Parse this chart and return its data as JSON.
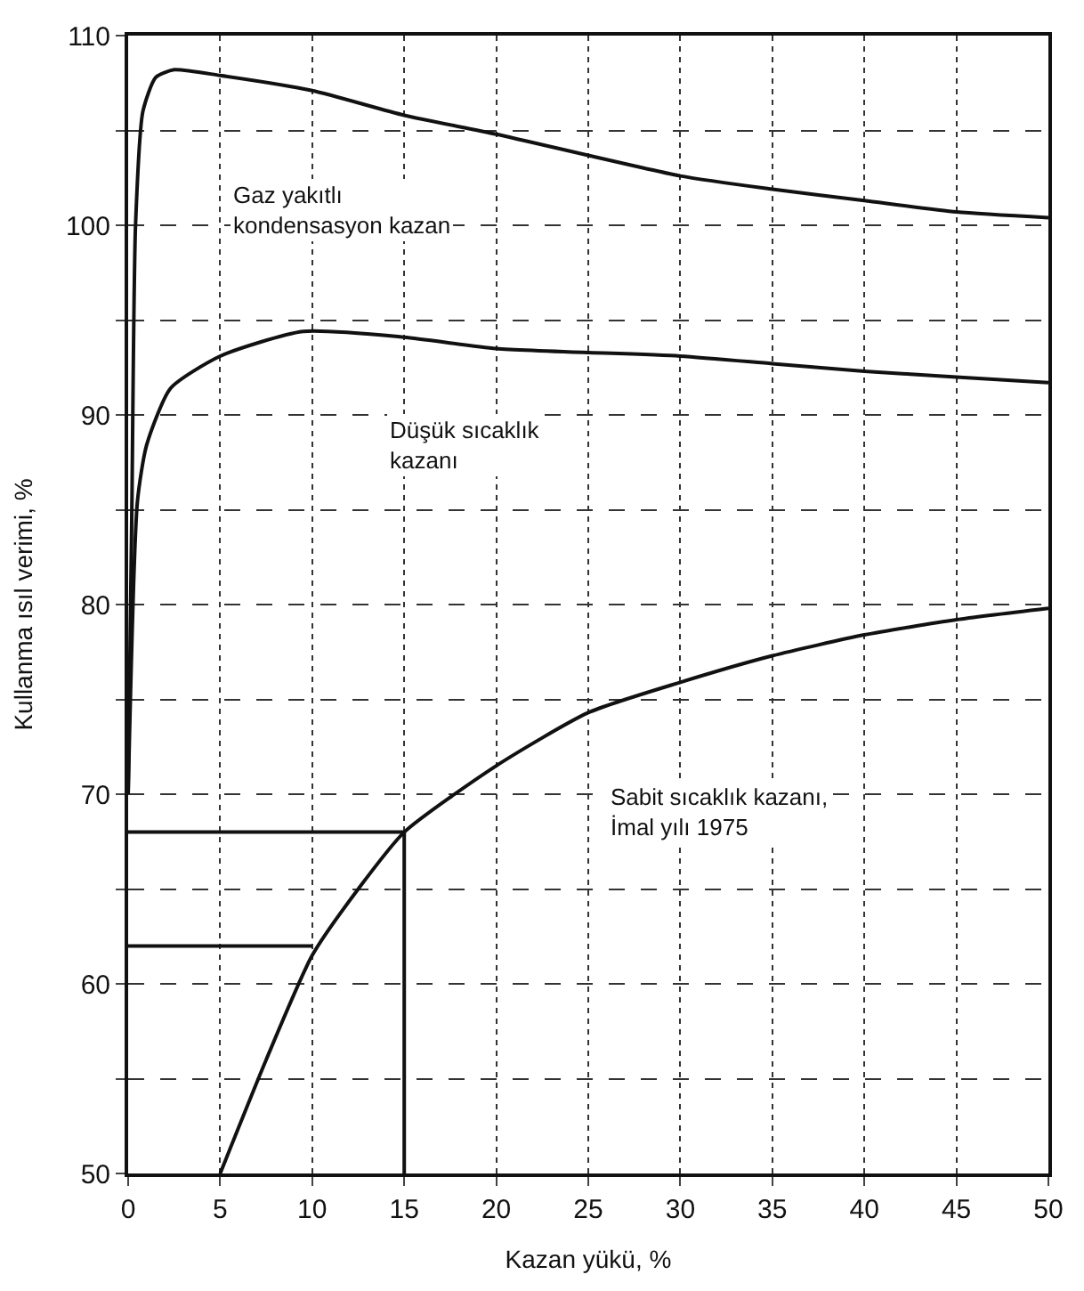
{
  "chart_data": {
    "type": "line",
    "xlabel": "Kazan yükü, %",
    "ylabel": "Kullanma ısıl verimi, %",
    "xlim": [
      0,
      50
    ],
    "xticks": [
      0,
      5,
      10,
      15,
      20,
      25,
      30,
      35,
      40,
      45,
      50
    ],
    "ylim": [
      50,
      110
    ],
    "yticks": [
      50,
      {
        "value": 55,
        "label": null
      },
      60,
      {
        "value": 65,
        "label": null
      },
      70,
      {
        "value": 75,
        "label": null
      },
      80,
      {
        "value": 85,
        "label": null
      },
      90,
      {
        "value": 95,
        "label": null
      },
      100,
      {
        "value": 105,
        "label": null
      },
      110
    ],
    "grid": true,
    "marker": "none",
    "line_style": "solid",
    "series": [
      {
        "color": "#111111",
        "x": [
          0,
          0.2,
          0.4,
          0.8,
          1.5,
          2.5,
          5,
          10,
          15,
          20,
          30,
          35,
          40,
          45,
          50
        ],
        "values": [
          70,
          85,
          100,
          106,
          107.8,
          108.2,
          107.9,
          107.1,
          105.8,
          104.8,
          102.6,
          101.9,
          101.3,
          100.7,
          100.4
        ]
      },
      {
        "color": "#111111",
        "x": [
          0,
          0.5,
          1,
          2.3,
          5,
          9.5,
          15,
          20,
          30,
          35,
          40,
          45,
          50
        ],
        "values": [
          70,
          85.4,
          88.4,
          91.4,
          93.1,
          94.4,
          94.1,
          93.5,
          93.1,
          92.7,
          92.3,
          92,
          91.7
        ]
      },
      {
        "color": "#111111",
        "x": [
          5,
          7.5,
          10,
          12.5,
          15,
          20,
          25,
          30,
          35,
          40,
          45,
          50
        ],
        "values": [
          50,
          56,
          61.5,
          65,
          68,
          71.5,
          74.3,
          75.9,
          77.3,
          78.4,
          79.2,
          79.8
        ]
      },
      {
        "color": "#111111",
        "x": [
          15,
          0
        ],
        "values": [
          68,
          68
        ]
      },
      {
        "color": "#111111",
        "x": [
          10,
          0
        ],
        "values": [
          62,
          62
        ]
      },
      {
        "color": "#111111",
        "x": [
          15,
          15
        ],
        "values": [
          50,
          68
        ]
      }
    ],
    "annotations": [
      "Gaz yakıtlı\nkondensasyon kazan",
      "Düşük sıcaklık\nkazanı",
      "Sabit sıcaklık kazanı,\nİmal yılı 1975"
    ]
  }
}
